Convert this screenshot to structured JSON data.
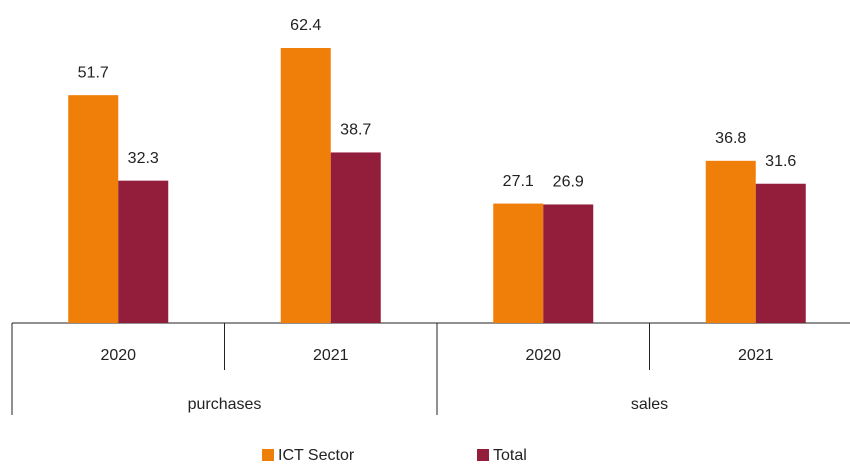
{
  "chart_data": {
    "type": "bar",
    "groups": [
      {
        "name": "purchases",
        "categories": [
          "2020",
          "2021"
        ]
      },
      {
        "name": "sales",
        "categories": [
          "2020",
          "2021"
        ]
      }
    ],
    "series": [
      {
        "name": "ICT Sector",
        "color": "#f07f09",
        "values": [
          51.7,
          62.4,
          27.1,
          36.8
        ]
      },
      {
        "name": "Total",
        "color": "#921e3c",
        "values": [
          32.3,
          38.7,
          26.9,
          31.6
        ]
      }
    ],
    "ylim": [
      0,
      70
    ],
    "legend": "bottom"
  }
}
